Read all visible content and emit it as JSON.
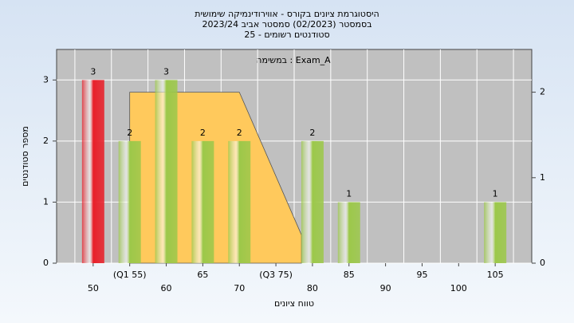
{
  "chart_data": {
    "type": "bar",
    "title": [
      "היסטוגרמת ציונים בקורס - אווירודינמיקה שימושית",
      "בסמסטר  (02/2023)  סמסטר אביב 2023/24",
      "סטודנטים רשומים - 25"
    ],
    "subtitle": "במשימה : Exam_A",
    "x_label": "טווח ציונים",
    "y_label": "מספר סטודנטים",
    "x": [
      50,
      55,
      60,
      65,
      70,
      80,
      85,
      105
    ],
    "values": [
      3,
      2,
      3,
      2,
      2,
      2,
      1,
      1
    ],
    "colors": [
      "#e8202a",
      "#9cc84a",
      "#9cc84a",
      "#9cc84a",
      "#9cc84a",
      "#9cc84a",
      "#9cc84a",
      "#9cc84a"
    ],
    "area": {
      "x": [
        55,
        70,
        78.5
      ],
      "values": [
        2,
        2,
        0.33
      ],
      "color": "#ffc95c",
      "axis": "y2"
    },
    "xlim": [
      45,
      110
    ],
    "xticks": [
      50,
      {
        "value": 55,
        "label": "(Q1 55)"
      },
      60,
      65,
      70,
      {
        "value": 75,
        "label": "(Q3 75)"
      },
      80,
      85,
      90,
      95,
      100,
      105
    ],
    "ylim": [
      0,
      3.5
    ],
    "yticks": [
      0,
      1,
      2,
      3
    ],
    "y2lim": [
      0,
      2.5
    ],
    "y2ticks": [
      0,
      1,
      2
    ],
    "grid": true
  }
}
